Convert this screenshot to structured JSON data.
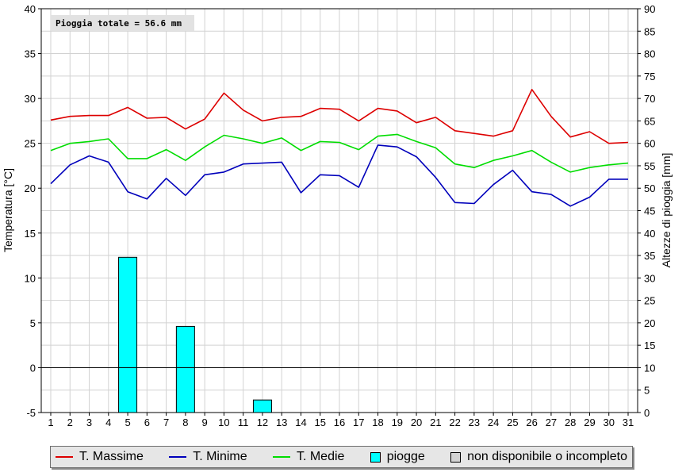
{
  "chart_data": {
    "type": "line",
    "total_label": "Pioggia totale = 56.6 mm",
    "ylabel": "Temperatura [°C]",
    "y2label": "Altezze di pioggia [mm]",
    "ylim": [
      -5,
      40
    ],
    "y2lim": [
      0,
      90
    ],
    "yticks": [
      -5,
      0,
      5,
      10,
      15,
      20,
      25,
      30,
      35,
      40
    ],
    "y2ticks": [
      0,
      5,
      10,
      15,
      20,
      25,
      30,
      35,
      40,
      45,
      50,
      55,
      60,
      65,
      70,
      75,
      80,
      85,
      90
    ],
    "categories": [
      "1",
      "2",
      "3",
      "4",
      "5",
      "6",
      "7",
      "8",
      "9",
      "10",
      "11",
      "12",
      "13",
      "14",
      "15",
      "16",
      "17",
      "18",
      "19",
      "20",
      "21",
      "22",
      "23",
      "24",
      "25",
      "26",
      "27",
      "28",
      "29",
      "30",
      "31"
    ],
    "series": [
      {
        "name": "T. Massime",
        "color": "#dd0000",
        "axis": "left",
        "kind": "line",
        "values": [
          27.6,
          28.0,
          28.1,
          28.1,
          29.0,
          27.8,
          27.9,
          26.6,
          27.7,
          30.6,
          28.7,
          27.5,
          27.9,
          28.0,
          28.9,
          28.8,
          27.5,
          28.9,
          28.6,
          27.3,
          27.9,
          26.4,
          26.1,
          25.8,
          26.4,
          31.0,
          28.0,
          25.7,
          26.3,
          25.0,
          25.1
        ]
      },
      {
        "name": "T. Minime",
        "color": "#0000bb",
        "axis": "left",
        "kind": "line",
        "values": [
          20.5,
          22.6,
          23.6,
          22.9,
          19.6,
          18.8,
          21.1,
          19.2,
          21.5,
          21.8,
          22.7,
          22.8,
          22.9,
          19.5,
          21.5,
          21.4,
          20.1,
          24.8,
          24.6,
          23.5,
          21.2,
          18.4,
          18.3,
          20.4,
          22.0,
          19.6,
          19.3,
          18.0,
          19.0,
          21.0,
          21.0
        ]
      },
      {
        "name": "T. Medie",
        "color": "#00dd00",
        "axis": "left",
        "kind": "line",
        "values": [
          24.2,
          25.0,
          25.2,
          25.5,
          23.3,
          23.3,
          24.3,
          23.1,
          24.6,
          25.9,
          25.5,
          25.0,
          25.6,
          24.2,
          25.2,
          25.1,
          24.3,
          25.8,
          26.0,
          25.2,
          24.5,
          22.7,
          22.3,
          23.1,
          23.6,
          24.2,
          22.9,
          21.8,
          22.3,
          22.6,
          22.8
        ]
      },
      {
        "name": "piogge",
        "color": "#00ffff",
        "axis": "right",
        "kind": "bar",
        "values": [
          0,
          0,
          0,
          0,
          34.6,
          0,
          0,
          19.2,
          0,
          0,
          0,
          2.8,
          0,
          0,
          0,
          0,
          0,
          0,
          0,
          0,
          0,
          0,
          0,
          0,
          0,
          0,
          0,
          0,
          0,
          0,
          0
        ]
      }
    ],
    "legend": [
      {
        "label": "T. Massime",
        "kind": "line",
        "color": "#dd0000"
      },
      {
        "label": "T. Minime",
        "kind": "line",
        "color": "#0000bb"
      },
      {
        "label": "T. Medie",
        "kind": "line",
        "color": "#00dd00"
      },
      {
        "label": "piogge",
        "kind": "box",
        "color": "#00ffff"
      },
      {
        "label": "non disponibile o incompleto",
        "kind": "box",
        "color": "#d3d3d3"
      }
    ],
    "legend_position": "bottom",
    "grid": true
  }
}
